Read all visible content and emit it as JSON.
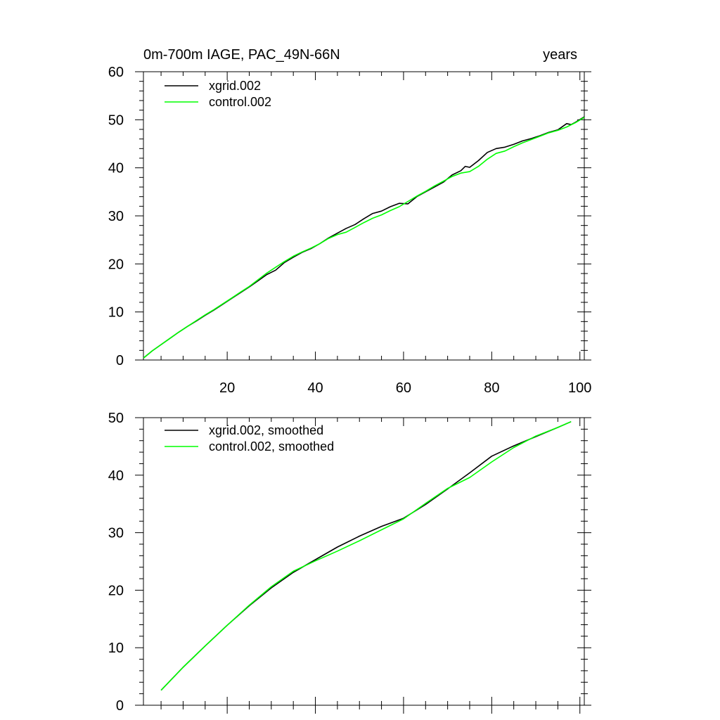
{
  "chart_data": [
    {
      "type": "line",
      "title": "0m-700m IAGE, PAC_49N-66N",
      "units_label": "years",
      "xlim": [
        1,
        101
      ],
      "ylim": [
        0,
        60
      ],
      "x_ticks": [
        20,
        40,
        60,
        80,
        100
      ],
      "y_ticks": [
        0,
        10,
        20,
        30,
        40,
        50,
        60
      ],
      "series": [
        {
          "name": "xgrid.002",
          "color": "#000000",
          "x": [
            1,
            3,
            5,
            7,
            9,
            11,
            13,
            15,
            17,
            19,
            21,
            23,
            25,
            27,
            29,
            31,
            33,
            35,
            37,
            39,
            41,
            43,
            45,
            47,
            49,
            51,
            53,
            55,
            57,
            59,
            61,
            63,
            65,
            67,
            69,
            71,
            73,
            74,
            75,
            77,
            79,
            81,
            83,
            85,
            87,
            89,
            91,
            93,
            95,
            97,
            98,
            99,
            101
          ],
          "y": [
            0.4,
            1.9,
            3.2,
            4.5,
            5.8,
            7.0,
            8.1,
            9.3,
            10.4,
            11.6,
            12.8,
            14.0,
            15.2,
            16.5,
            17.8,
            18.7,
            20.3,
            21.4,
            22.4,
            23.2,
            24.2,
            25.4,
            26.4,
            27.4,
            28.2,
            29.4,
            30.5,
            31.0,
            31.9,
            32.6,
            32.5,
            34.0,
            35.0,
            36.0,
            37.0,
            38.5,
            39.4,
            40.3,
            40.1,
            41.5,
            43.2,
            44.0,
            44.3,
            44.9,
            45.6,
            46.1,
            46.7,
            47.4,
            47.9,
            49.2,
            49.0,
            49.5,
            50.6
          ]
        },
        {
          "name": "control.002",
          "color": "#00ff00",
          "x": [
            1,
            3,
            5,
            7,
            9,
            11,
            13,
            15,
            17,
            19,
            21,
            23,
            25,
            27,
            29,
            31,
            33,
            35,
            37,
            39,
            41,
            43,
            45,
            47,
            49,
            51,
            53,
            55,
            57,
            59,
            61,
            63,
            65,
            67,
            69,
            71,
            73,
            75,
            77,
            79,
            81,
            83,
            85,
            87,
            89,
            91,
            93,
            95,
            97,
            99,
            101
          ],
          "y": [
            0.4,
            1.9,
            3.2,
            4.5,
            5.8,
            7.0,
            8.2,
            9.4,
            10.5,
            11.7,
            12.9,
            14.1,
            15.3,
            16.7,
            18.1,
            19.3,
            20.5,
            21.6,
            22.5,
            23.3,
            24.2,
            25.3,
            26.1,
            26.6,
            27.6,
            28.6,
            29.5,
            30.2,
            31.1,
            31.9,
            33.0,
            34.1,
            35.1,
            36.2,
            37.2,
            38.2,
            38.9,
            39.2,
            40.3,
            41.8,
            43.0,
            43.5,
            44.4,
            45.2,
            45.9,
            46.6,
            47.3,
            47.8,
            48.5,
            49.4,
            50.5
          ]
        }
      ]
    },
    {
      "type": "line",
      "title": "",
      "xlim": [
        1,
        101
      ],
      "ylim": [
        0,
        50
      ],
      "x_ticks": [
        20,
        40,
        60,
        80,
        100
      ],
      "y_ticks": [
        0,
        10,
        20,
        30,
        40,
        50
      ],
      "series": [
        {
          "name": "xgrid.002, smoothed",
          "color": "#000000",
          "x": [
            5,
            10,
            15,
            20,
            25,
            30,
            35,
            40,
            45,
            50,
            55,
            60,
            65,
            70,
            75,
            80,
            85,
            90,
            95,
            98
          ],
          "y": [
            2.6,
            6.6,
            10.3,
            13.9,
            17.3,
            20.4,
            23.1,
            25.3,
            27.5,
            29.4,
            31.1,
            32.5,
            34.9,
            37.6,
            40.4,
            43.3,
            45.1,
            46.7,
            48.3,
            49.3
          ]
        },
        {
          "name": "control.002, smoothed",
          "color": "#00ff00",
          "x": [
            5,
            10,
            15,
            20,
            25,
            30,
            35,
            40,
            45,
            50,
            55,
            60,
            65,
            70,
            75,
            80,
            85,
            90,
            95,
            98
          ],
          "y": [
            2.6,
            6.6,
            10.3,
            13.9,
            17.4,
            20.6,
            23.3,
            25.1,
            26.8,
            28.6,
            30.5,
            32.4,
            35.1,
            37.7,
            39.6,
            42.3,
            44.8,
            46.8,
            48.3,
            49.3
          ]
        }
      ]
    }
  ]
}
